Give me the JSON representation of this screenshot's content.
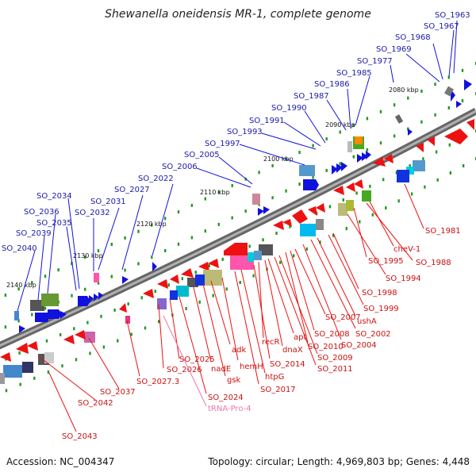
{
  "title": "Shewanella oneidensis MR-1, complete genome",
  "footer": {
    "accession": "Accession: NC_004347",
    "summary": "Topology: circular; Length: 4,969,803 bp; Genes: 4,448"
  },
  "colors": {
    "backbone": "#888888",
    "forward_gene": "#1111dd",
    "reverse_gene": "#ee1111",
    "tick_dot": "#229922",
    "label_blue": "#1a1aa8",
    "label_red": "#cc1111",
    "label_trna": "#ee77aa"
  },
  "ticks": [
    "2080 kbp",
    "2090 kbp",
    "2100 kbp",
    "2110 kbp",
    "2120 kbp",
    "2130 kbp",
    "2140 kbp"
  ],
  "labels_top": [
    "SO_1963",
    "SO_1967",
    "SO_1968",
    "SO_1969",
    "SO_1977",
    "SO_1985",
    "SO_1986",
    "SO_1987",
    "SO_1990",
    "SO_1991",
    "SO_1993",
    "SO_1997",
    "SO_2005",
    "SO_2006",
    "SO_2022",
    "SO_2027",
    "SO_2031",
    "SO_2032",
    "SO_2034",
    "SO_2035",
    "SO_2036",
    "SO_2039",
    "SO_2040"
  ],
  "labels_bottom": [
    "SO_1981",
    "SO_1988",
    "cheV-1",
    "SO_1994",
    "SO_1995",
    "SO_1998",
    "SO_1999",
    "ushA",
    "SO_2002",
    "SO_2004",
    "SO_2007",
    "SO_2008",
    "SO_2009",
    "SO_2010",
    "SO_2011",
    "apt",
    "dnaX",
    "recR",
    "SO_2014",
    "htpG",
    "SO_2017",
    "hemH",
    "adk",
    "gsk",
    "nadE",
    "SO_2024",
    "SO_2025",
    "SO_2026",
    "SO_2027.3",
    "SO_2037",
    "SO_2042",
    "SO_2043",
    "tRNA-Pro-4"
  ]
}
